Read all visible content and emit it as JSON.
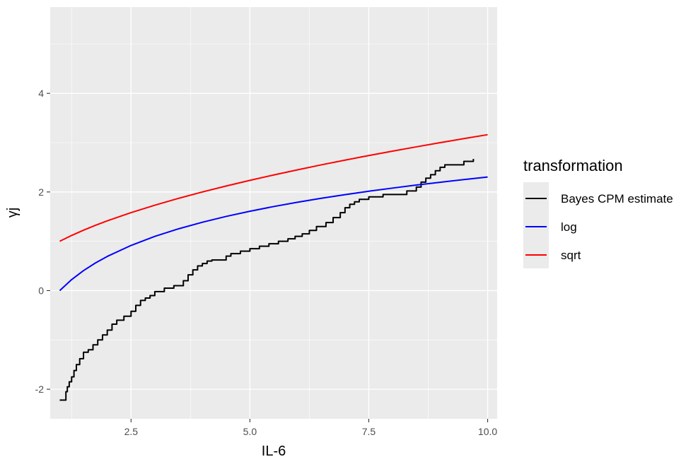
{
  "chart_data": {
    "type": "line",
    "xlabel": "IL-6",
    "ylabel": "γj",
    "xlim": [
      0.8,
      10.2
    ],
    "ylim": [
      -2.6,
      5.75
    ],
    "x_ticks": [
      2.5,
      5.0,
      7.5,
      10.0
    ],
    "x_tick_labels": [
      "2.5",
      "5.0",
      "7.5",
      "10.0"
    ],
    "y_ticks": [
      -2,
      0,
      2,
      4
    ],
    "y_tick_labels": [
      "-2",
      "0",
      "2",
      "4"
    ],
    "grid": true,
    "background": "#ebebeb",
    "legend": {
      "title": "transformation",
      "position": "right"
    },
    "series": [
      {
        "name": "Bayes CPM estimate",
        "color": "#000000",
        "step": true,
        "x": [
          1.0,
          1.13,
          1.16,
          1.2,
          1.25,
          1.3,
          1.35,
          1.42,
          1.5,
          1.6,
          1.7,
          1.8,
          1.9,
          2.0,
          2.1,
          2.2,
          2.35,
          2.5,
          2.6,
          2.7,
          2.8,
          2.9,
          3.0,
          3.2,
          3.4,
          3.6,
          3.7,
          3.8,
          3.9,
          4.0,
          4.1,
          4.2,
          4.5,
          4.6,
          4.8,
          5.0,
          5.2,
          5.4,
          5.6,
          5.8,
          5.95,
          6.1,
          6.25,
          6.4,
          6.6,
          6.75,
          6.9,
          7.0,
          7.1,
          7.2,
          7.3,
          7.5,
          7.8,
          8.3,
          8.5,
          8.6,
          8.7,
          8.8,
          8.9,
          9.0,
          9.1,
          9.5,
          9.7
        ],
        "values": [
          -2.22,
          -2.05,
          -1.95,
          -1.85,
          -1.75,
          -1.62,
          -1.5,
          -1.38,
          -1.25,
          -1.2,
          -1.1,
          -1.0,
          -0.9,
          -0.8,
          -0.68,
          -0.6,
          -0.52,
          -0.42,
          -0.3,
          -0.2,
          -0.15,
          -0.1,
          -0.02,
          0.05,
          0.1,
          0.2,
          0.32,
          0.42,
          0.5,
          0.55,
          0.6,
          0.62,
          0.7,
          0.75,
          0.8,
          0.85,
          0.9,
          0.95,
          1.0,
          1.05,
          1.1,
          1.15,
          1.22,
          1.3,
          1.38,
          1.48,
          1.58,
          1.68,
          1.75,
          1.8,
          1.85,
          1.9,
          1.95,
          2.02,
          2.1,
          2.2,
          2.28,
          2.35,
          2.43,
          2.5,
          2.55,
          2.62,
          2.67
        ]
      },
      {
        "name": "log",
        "color": "#0000ff",
        "x": [
          1.0,
          1.25,
          1.5,
          1.75,
          2.0,
          2.5,
          3.0,
          3.5,
          4.0,
          4.5,
          5.0,
          5.5,
          6.0,
          6.5,
          7.0,
          7.5,
          8.0,
          8.5,
          9.0,
          9.5,
          10.0
        ],
        "values": [
          0.0,
          0.223,
          0.405,
          0.56,
          0.693,
          0.916,
          1.099,
          1.253,
          1.386,
          1.504,
          1.609,
          1.705,
          1.792,
          1.872,
          1.946,
          2.015,
          2.079,
          2.14,
          2.197,
          2.251,
          2.303
        ]
      },
      {
        "name": "sqrt",
        "color": "#ff0000",
        "x": [
          1.0,
          1.25,
          1.5,
          1.75,
          2.0,
          2.5,
          3.0,
          3.5,
          4.0,
          4.5,
          5.0,
          5.5,
          6.0,
          6.5,
          7.0,
          7.5,
          8.0,
          8.5,
          9.0,
          9.5,
          10.0
        ],
        "values": [
          1.0,
          1.118,
          1.225,
          1.323,
          1.414,
          1.581,
          1.732,
          1.871,
          2.0,
          2.121,
          2.236,
          2.345,
          2.449,
          2.55,
          2.646,
          2.739,
          2.828,
          2.915,
          3.0,
          3.082,
          3.162
        ]
      }
    ]
  }
}
